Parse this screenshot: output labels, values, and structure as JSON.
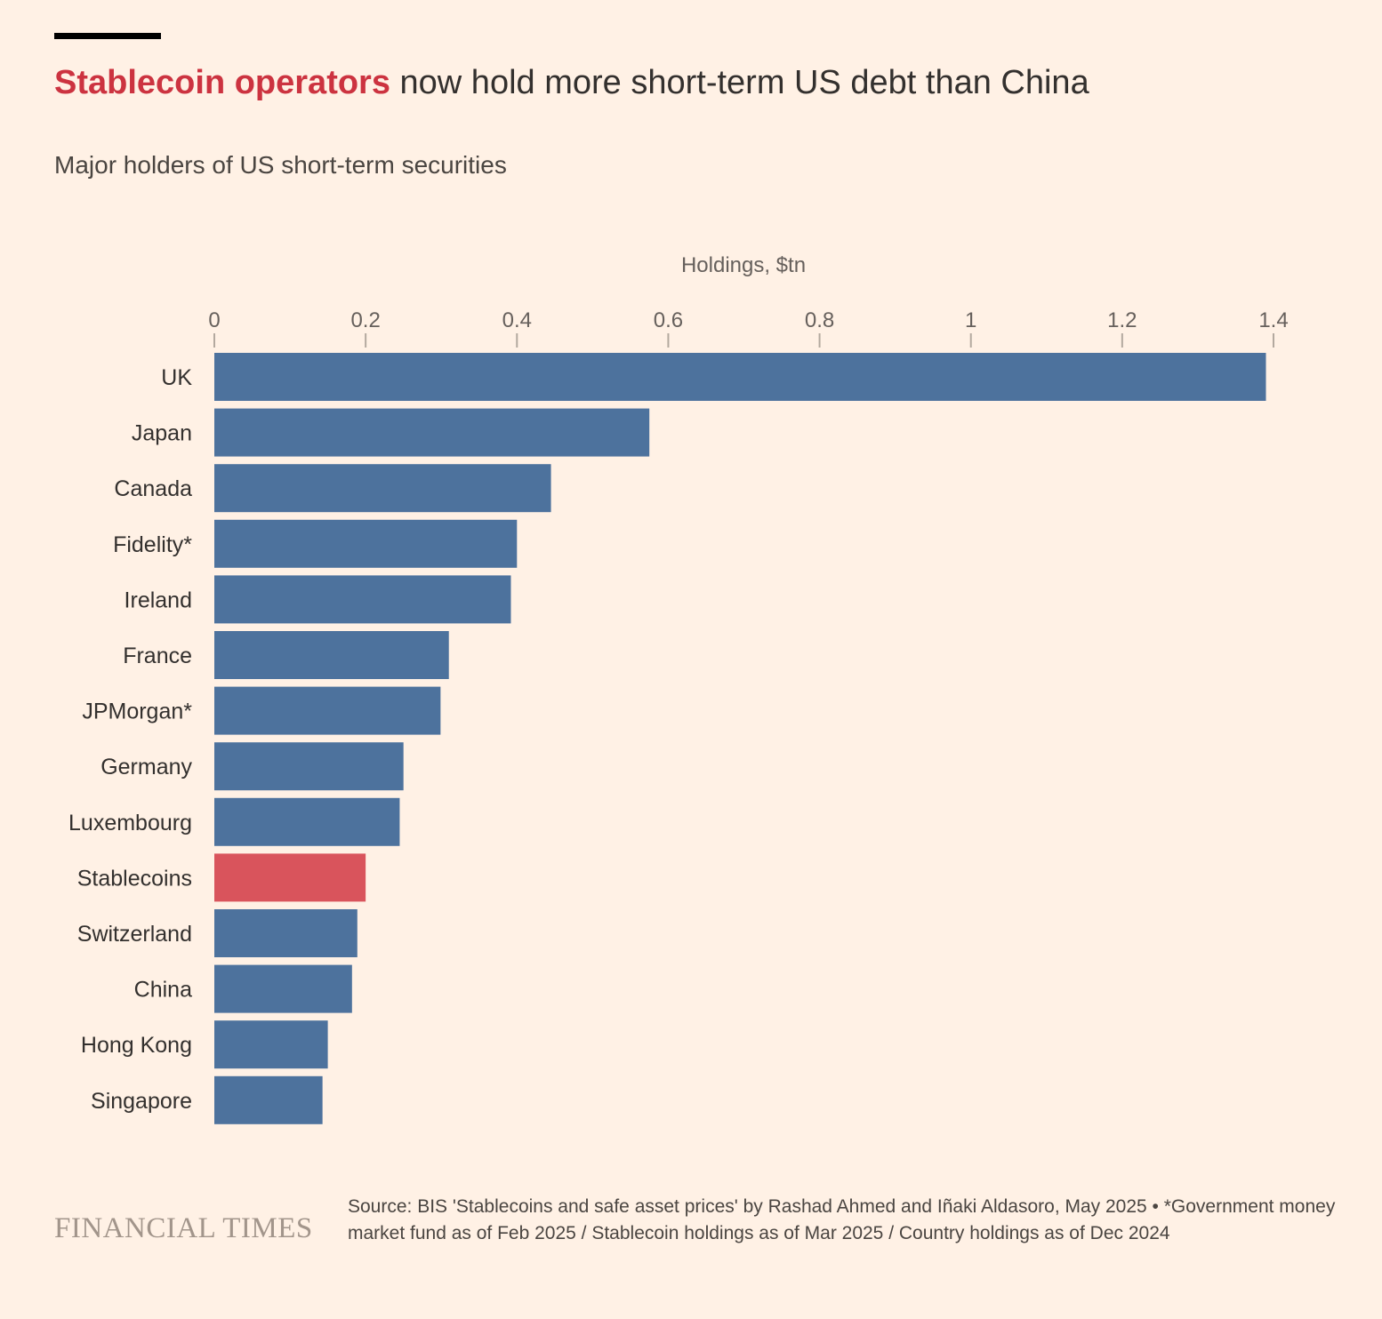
{
  "header": {
    "title_highlight": "Stablecoin operators",
    "title_rest": " now hold more short-term US debt than China",
    "subtitle": "Major holders of US short-term securities"
  },
  "colors": {
    "background": "#FFF1E5",
    "bar_default": "#4D729D",
    "bar_highlight": "#D9545C",
    "title_highlight": "#CC3340"
  },
  "chart_data": {
    "type": "bar",
    "orientation": "horizontal",
    "xlabel": "Holdings, $tn",
    "xlim": [
      0,
      1.4
    ],
    "ticks": [
      {
        "value": 0,
        "label": "0"
      },
      {
        "value": 0.2,
        "label": "0.2"
      },
      {
        "value": 0.4,
        "label": "0.4"
      },
      {
        "value": 0.6,
        "label": "0.6"
      },
      {
        "value": 0.8,
        "label": "0.8"
      },
      {
        "value": 1.0,
        "label": "1"
      },
      {
        "value": 1.2,
        "label": "1.2"
      },
      {
        "value": 1.4,
        "label": "1.4"
      }
    ],
    "categories": [
      "UK",
      "Japan",
      "Canada",
      "Fidelity*",
      "Ireland",
      "France",
      "JPMorgan*",
      "Germany",
      "Luxembourg",
      "Stablecoins",
      "Switzerland",
      "China",
      "Hong Kong",
      "Singapore"
    ],
    "values": [
      1.39,
      0.575,
      0.445,
      0.4,
      0.392,
      0.31,
      0.299,
      0.25,
      0.245,
      0.2,
      0.189,
      0.182,
      0.15,
      0.143
    ],
    "highlight": "Stablecoins"
  },
  "footer": {
    "logo": "FINANCIAL TIMES",
    "source": "Source: BIS 'Stablecoins and safe asset prices' by Rashad Ahmed and Iñaki Aldasoro, May 2025 • *Government money market fund as of Feb 2025 / Stablecoin holdings as of Mar 2025 / Country holdings as of Dec 2024"
  }
}
